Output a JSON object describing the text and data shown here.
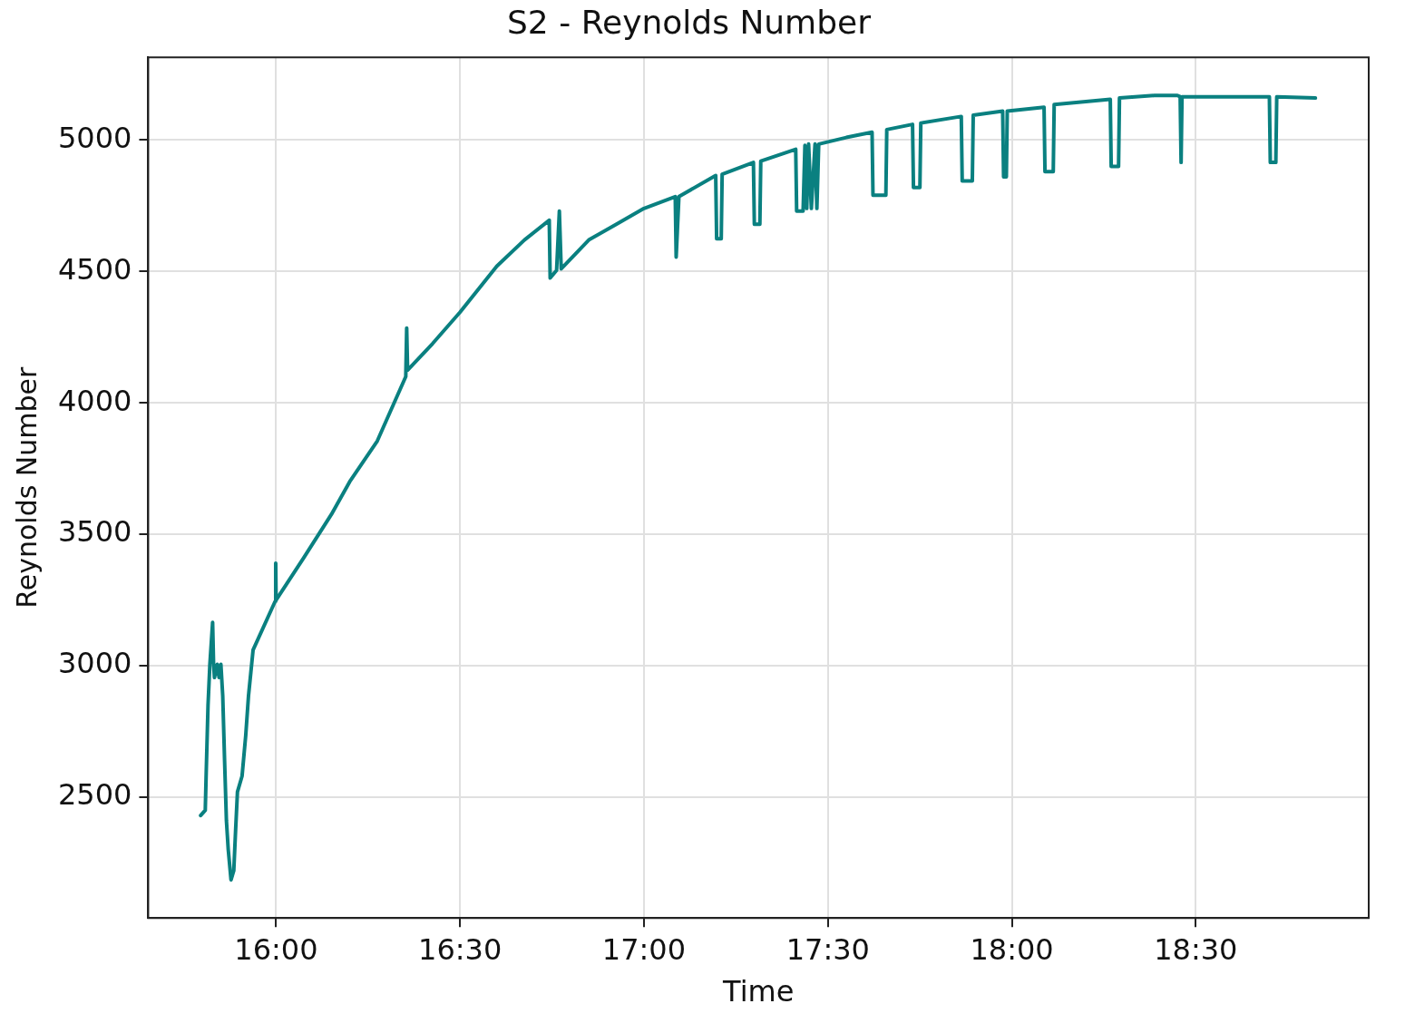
{
  "chart_data": {
    "type": "line",
    "title": "S2 - Reynolds Number",
    "xlabel": "Time",
    "ylabel": "Reynolds Number",
    "xlim": [
      15.6525,
      18.97
    ],
    "ylim": [
      2040,
      5315
    ],
    "xticks": [
      {
        "value": 16,
        "label": "16:00"
      },
      {
        "value": 16.5,
        "label": "16:30"
      },
      {
        "value": 17,
        "label": "17:00"
      },
      {
        "value": 17.5,
        "label": "17:30"
      },
      {
        "value": 18,
        "label": "18:00"
      },
      {
        "value": 18.5,
        "label": "18:30"
      }
    ],
    "yticks": [
      2500,
      3000,
      3500,
      4000,
      4500,
      5000
    ],
    "grid": true,
    "legend": false,
    "marker": "none",
    "line_style": "solid",
    "series": [
      {
        "color": "#0a8080",
        "x": [
          15.795,
          15.8075,
          15.81,
          15.815,
          15.82,
          15.8275,
          15.83,
          15.8325,
          15.84,
          15.845,
          15.85,
          15.855,
          15.86,
          15.865,
          15.87,
          15.8775,
          15.885,
          15.89,
          15.895,
          15.9075,
          15.9175,
          15.925,
          15.9375,
          15.9975,
          15.999,
          16.0,
          16.075,
          16.15,
          16.2,
          16.275,
          16.3525,
          16.355,
          16.3575,
          16.425,
          16.5,
          16.6,
          16.675,
          16.7425,
          16.745,
          16.7625,
          16.77,
          16.775,
          16.85,
          16.925,
          17.0,
          17.085,
          17.0875,
          17.095,
          17.195,
          17.1975,
          17.21,
          17.2125,
          17.2975,
          17.3,
          17.315,
          17.3175,
          17.4125,
          17.415,
          17.4325,
          17.4375,
          17.4425,
          17.4475,
          17.455,
          17.465,
          17.47,
          17.475,
          17.55,
          17.62,
          17.6225,
          17.6575,
          17.66,
          17.73,
          17.7325,
          17.75,
          17.7525,
          17.8625,
          17.865,
          17.8925,
          17.895,
          17.975,
          17.9775,
          17.985,
          17.9875,
          18.0875,
          18.09,
          18.1125,
          18.115,
          18.2675,
          18.27,
          18.29,
          18.2925,
          18.3875,
          18.45,
          18.4575,
          18.46,
          18.4625,
          18.7,
          18.7025,
          18.7175,
          18.72,
          18.825
        ],
        "values": [
          2430,
          2450,
          2590,
          2850,
          3005,
          3165,
          3010,
          2955,
          3005,
          2955,
          3005,
          2885,
          2640,
          2410,
          2300,
          2185,
          2220,
          2375,
          2520,
          2580,
          2735,
          2885,
          3060,
          3245,
          3390,
          3250,
          3410,
          3575,
          3700,
          3855,
          4100,
          4285,
          4125,
          4225,
          4345,
          4520,
          4620,
          4695,
          4475,
          4505,
          4730,
          4510,
          4620,
          4680,
          4740,
          4785,
          4555,
          4785,
          4865,
          4625,
          4625,
          4870,
          4915,
          4680,
          4680,
          4920,
          4965,
          4730,
          4730,
          4980,
          4740,
          4985,
          4740,
          4985,
          4740,
          4985,
          5010,
          5030,
          4790,
          4790,
          5040,
          5060,
          4820,
          4820,
          5065,
          5090,
          4845,
          4845,
          5095,
          5110,
          4860,
          4860,
          5110,
          5125,
          4880,
          4880,
          5135,
          5155,
          4900,
          4900,
          5160,
          5170,
          5170,
          5165,
          4915,
          5165,
          5165,
          4915,
          4915,
          5165,
          5160
        ]
      }
    ]
  }
}
